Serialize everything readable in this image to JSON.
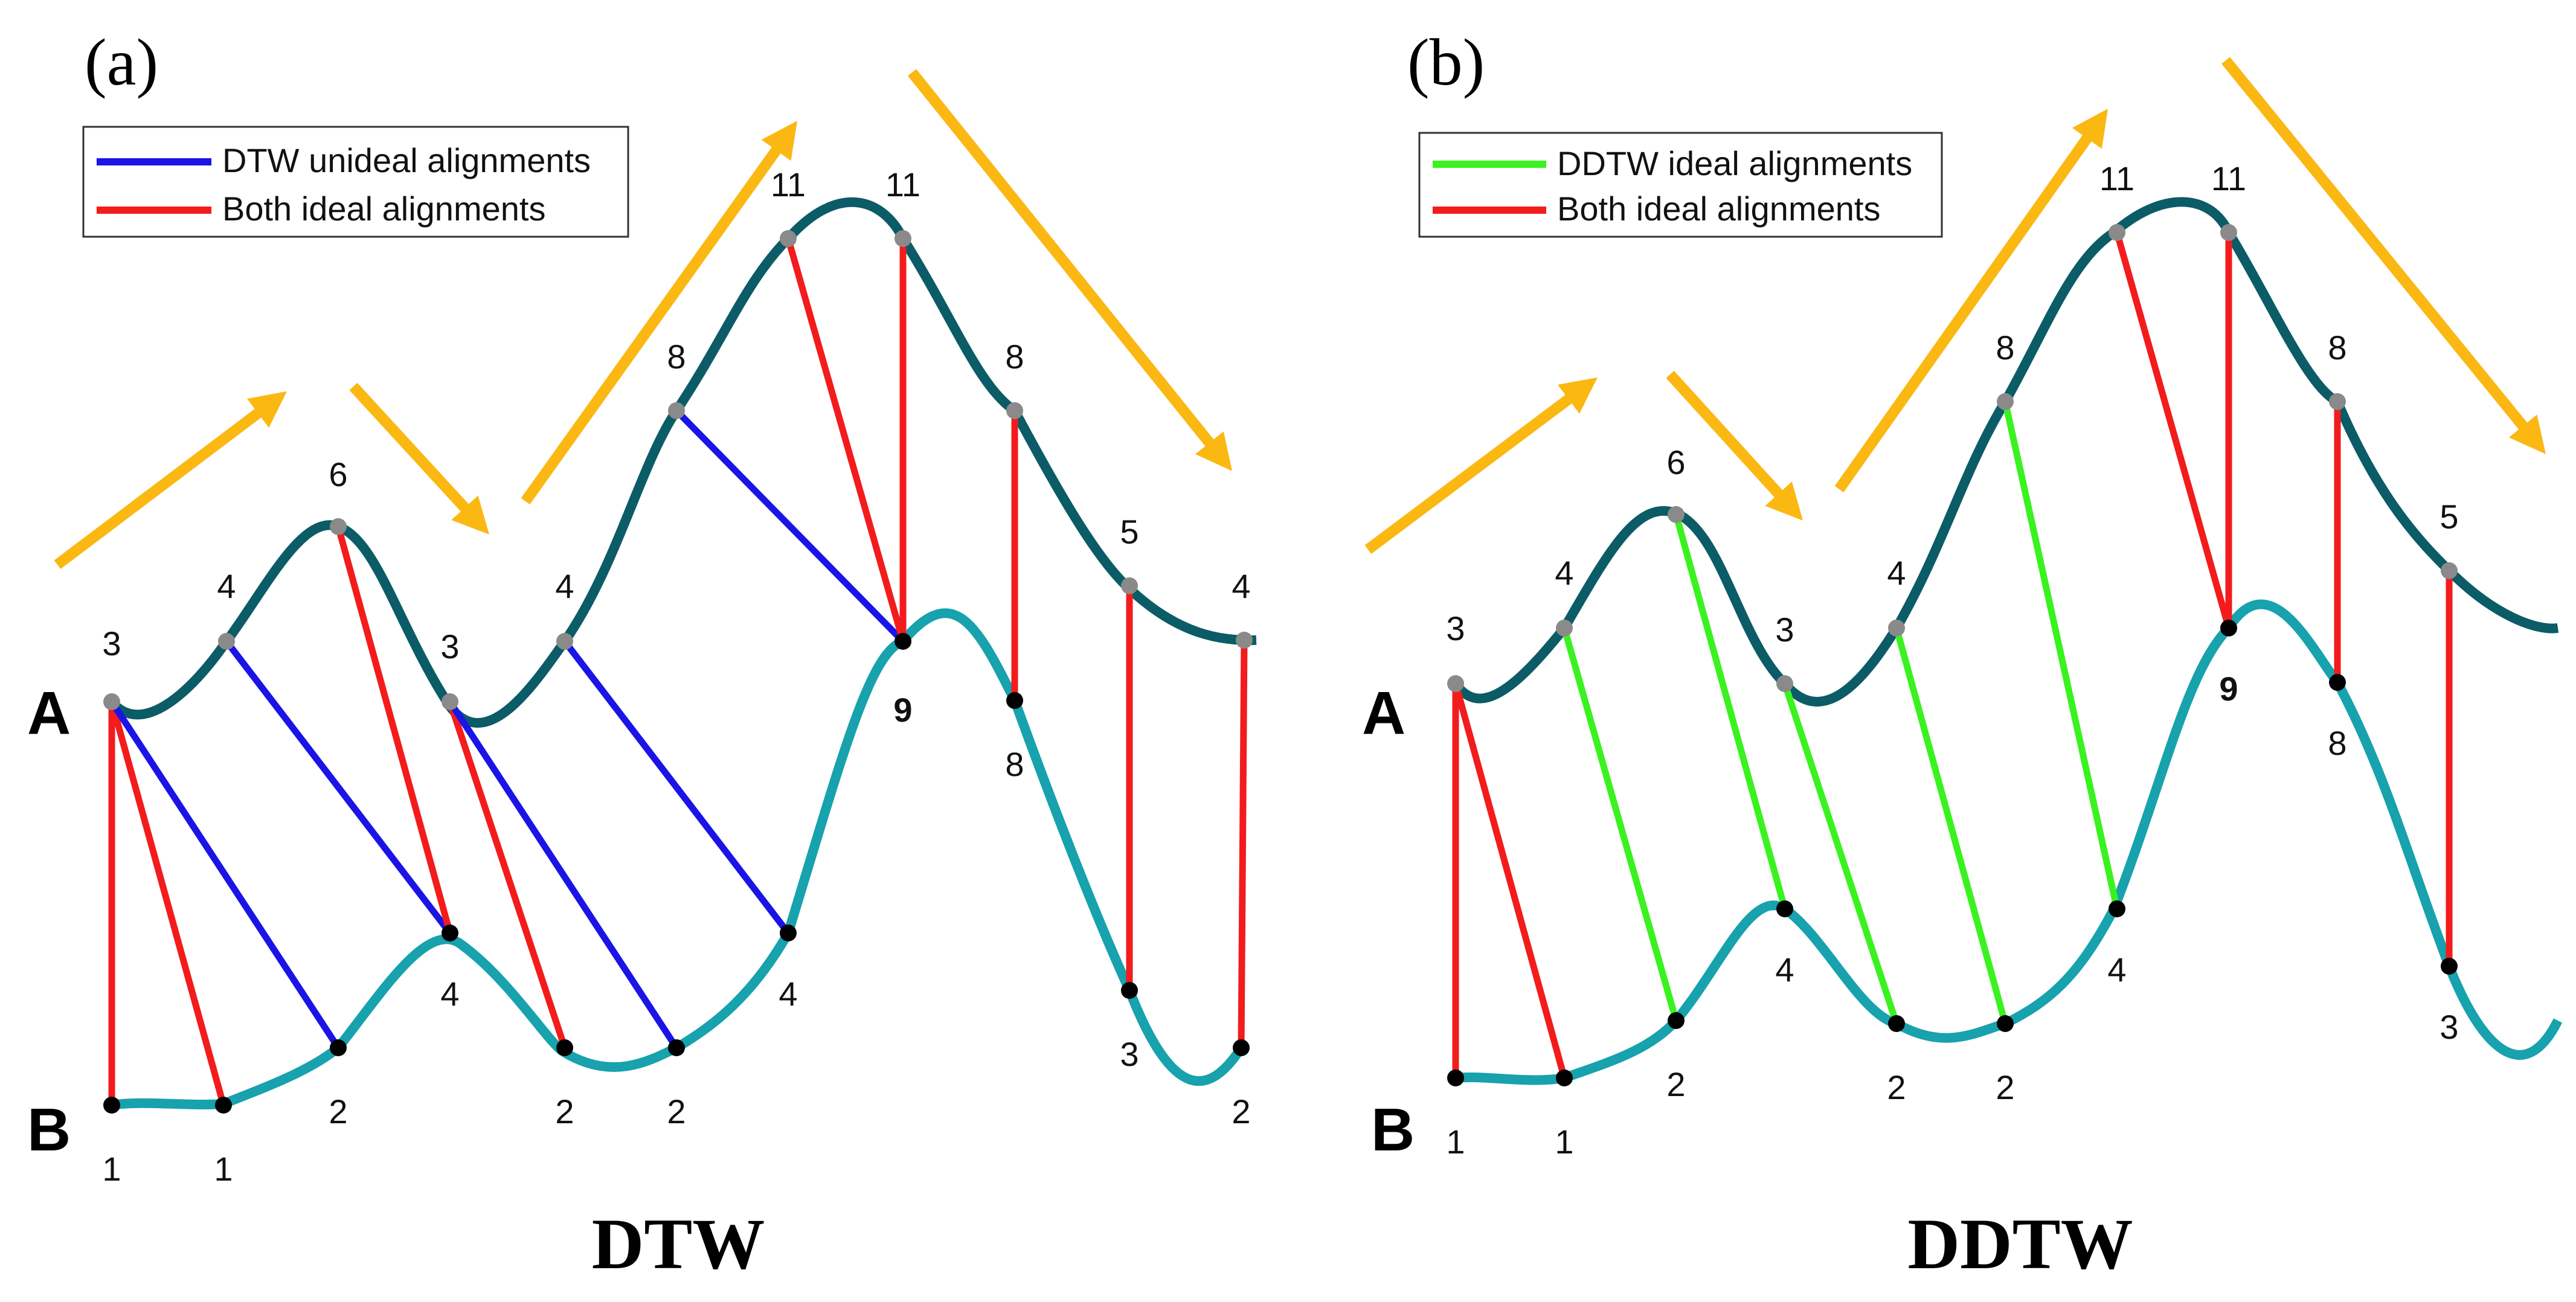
{
  "colors": {
    "curve_a": "#0b5c66",
    "curve_b": "#17a2ad",
    "point_a": "#8a8a8a",
    "point_b": "#000000",
    "arrow": "#fbb813",
    "blue": "#1a14e6",
    "red": "#f21c1c",
    "green": "#3af21f"
  },
  "panels": [
    {
      "letter": "(a)",
      "title": "DTW",
      "series_a_label": "A",
      "series_b_label": "B",
      "legend": [
        {
          "text": "DTW unideal alignments",
          "color": "blue"
        },
        {
          "text": "Both ideal alignments",
          "color": "red"
        }
      ],
      "a_values": [
        "3",
        "4",
        "6",
        "3",
        "4",
        "8",
        "11",
        "11",
        "8",
        "5",
        "4"
      ],
      "b_values": [
        "1",
        "1",
        "2",
        "4",
        "2",
        "2",
        "4",
        "9",
        "8",
        "3",
        "2"
      ],
      "alignments": [
        {
          "a": 0,
          "b": 0,
          "color": "red"
        },
        {
          "a": 0,
          "b": 1,
          "color": "red"
        },
        {
          "a": 0,
          "b": 2,
          "color": "blue"
        },
        {
          "a": 1,
          "b": 3,
          "color": "blue"
        },
        {
          "a": 2,
          "b": 3,
          "color": "red"
        },
        {
          "a": 3,
          "b": 4,
          "color": "red"
        },
        {
          "a": 3,
          "b": 5,
          "color": "blue"
        },
        {
          "a": 4,
          "b": 6,
          "color": "blue"
        },
        {
          "a": 5,
          "b": 7,
          "color": "blue"
        },
        {
          "a": 6,
          "b": 7,
          "color": "red"
        },
        {
          "a": 7,
          "b": 7,
          "color": "red"
        },
        {
          "a": 8,
          "b": 8,
          "color": "red"
        },
        {
          "a": 9,
          "b": 9,
          "color": "red"
        },
        {
          "a": 10,
          "b": 10,
          "color": "red"
        }
      ]
    },
    {
      "letter": "(b)",
      "title": "DDTW",
      "series_a_label": "A",
      "series_b_label": "B",
      "legend": [
        {
          "text": "DDTW ideal alignments",
          "color": "green"
        },
        {
          "text": "Both ideal alignments",
          "color": "red"
        }
      ],
      "a_values": [
        "3",
        "4",
        "6",
        "3",
        "4",
        "8",
        "11",
        "11",
        "8",
        "5"
      ],
      "b_values": [
        "1",
        "1",
        "2",
        "4",
        "2",
        "2",
        "4",
        "9",
        "8",
        "3"
      ],
      "alignments": [
        {
          "a": 0,
          "b": 0,
          "color": "red"
        },
        {
          "a": 0,
          "b": 1,
          "color": "red"
        },
        {
          "a": 1,
          "b": 2,
          "color": "green"
        },
        {
          "a": 2,
          "b": 3,
          "color": "green"
        },
        {
          "a": 3,
          "b": 4,
          "color": "green"
        },
        {
          "a": 4,
          "b": 5,
          "color": "green"
        },
        {
          "a": 5,
          "b": 6,
          "color": "green"
        },
        {
          "a": 6,
          "b": 7,
          "color": "red"
        },
        {
          "a": 7,
          "b": 7,
          "color": "red"
        },
        {
          "a": 8,
          "b": 8,
          "color": "red"
        },
        {
          "a": 9,
          "b": 9,
          "color": "red"
        }
      ]
    }
  ]
}
